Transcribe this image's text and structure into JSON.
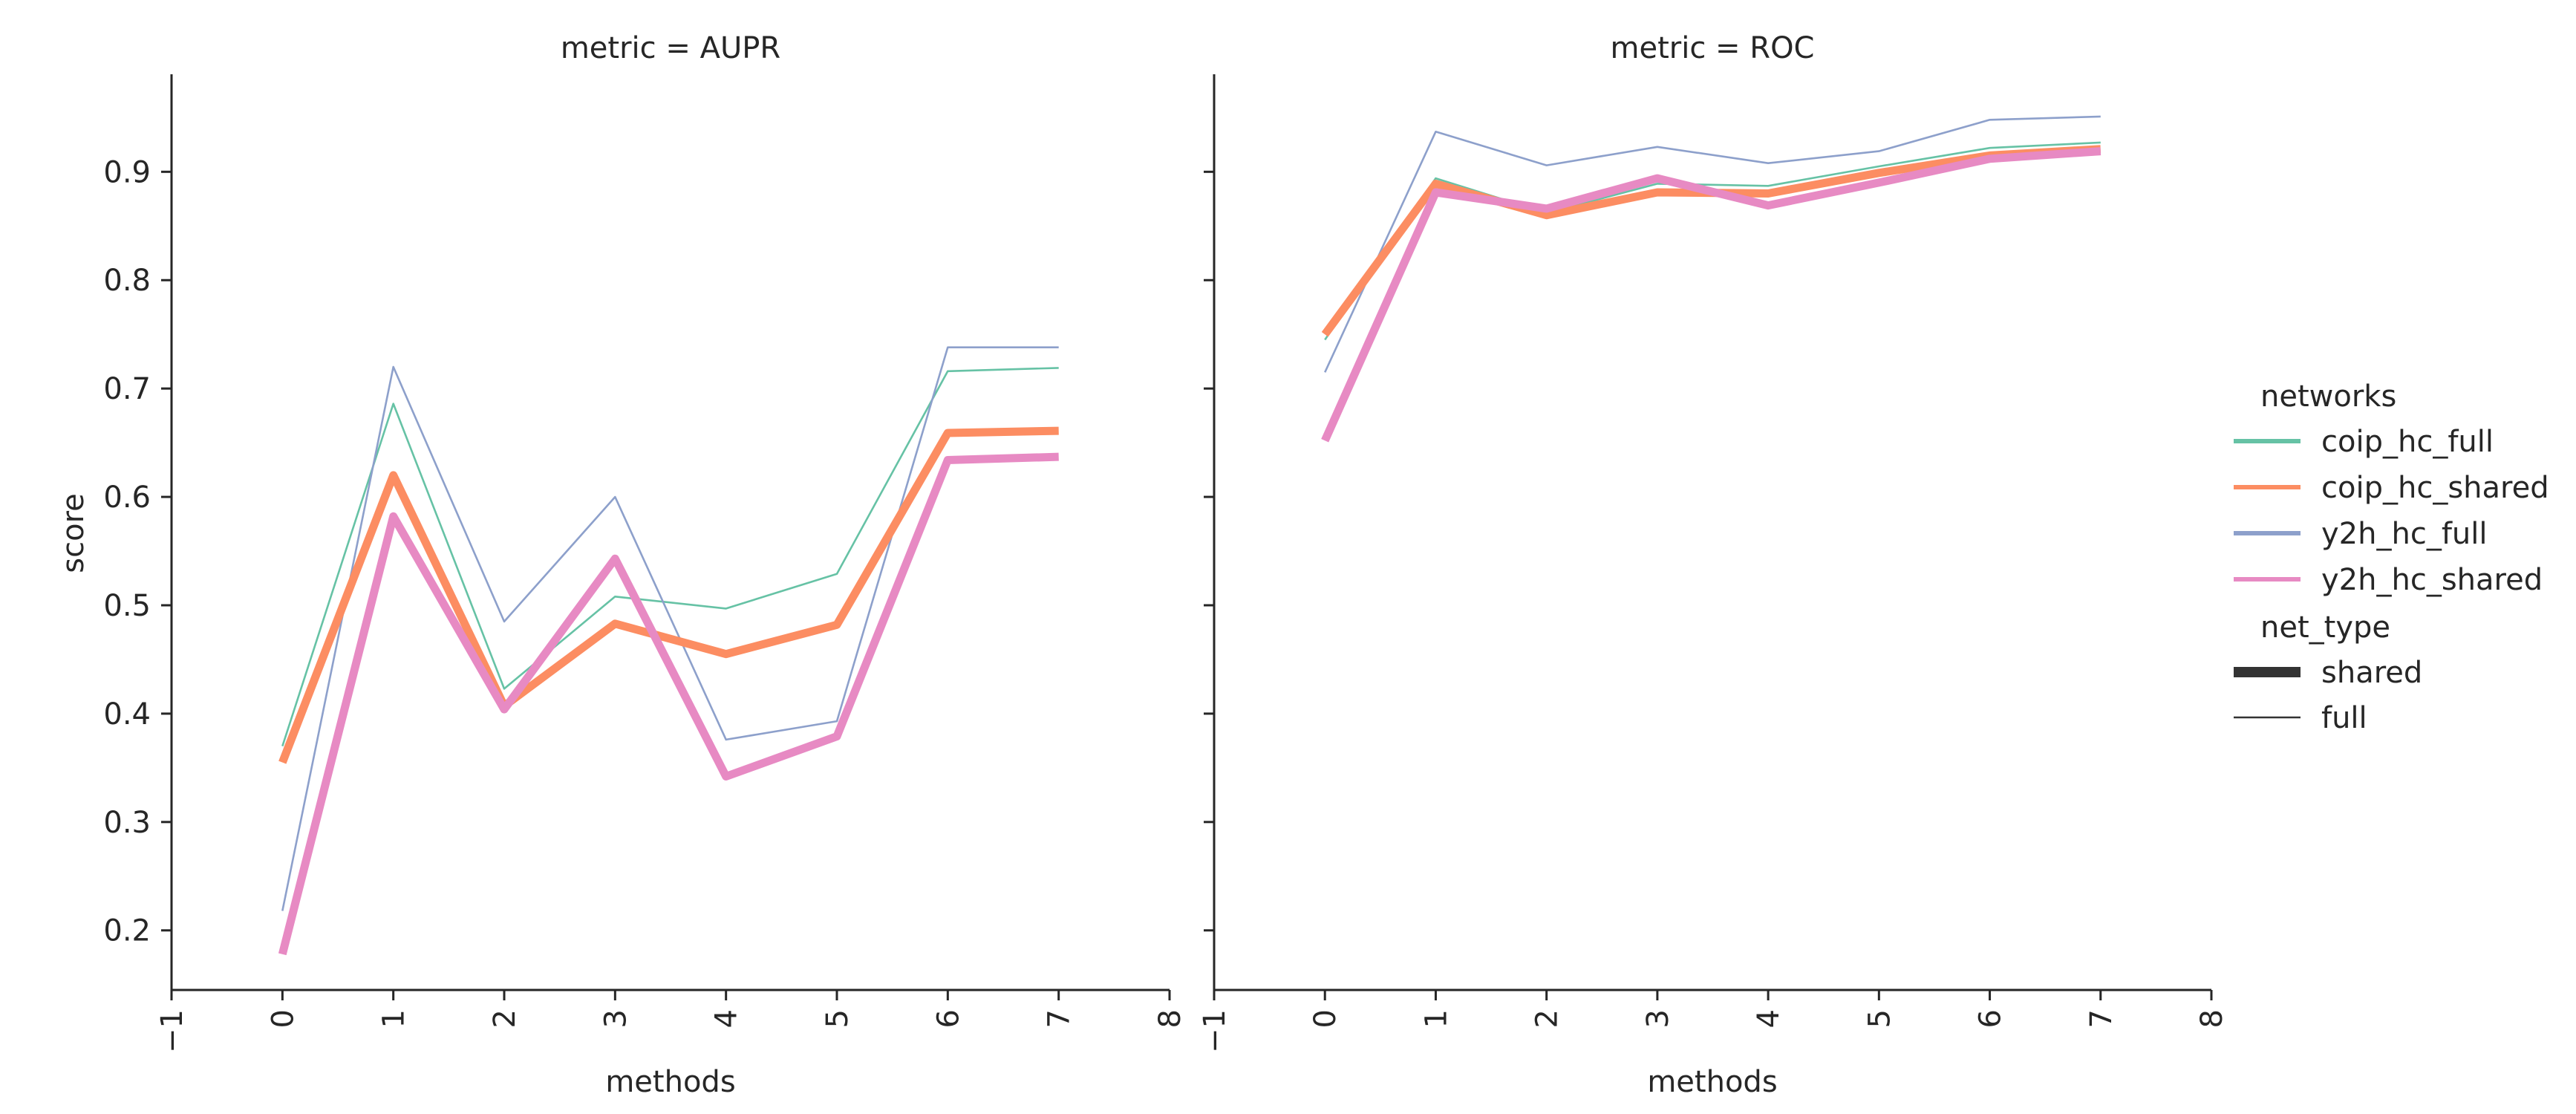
{
  "figure": {
    "y_axis_label": "score",
    "panels": [
      {
        "id": "aupr",
        "title": "metric = AUPR",
        "xlabel": "methods"
      },
      {
        "id": "roc",
        "title": "metric = ROC",
        "xlabel": "methods"
      }
    ],
    "legend": {
      "networks_title": "networks",
      "networks": [
        "coip_hc_full",
        "coip_hc_shared",
        "y2h_hc_full",
        "y2h_hc_shared"
      ],
      "net_type_title": "net_type",
      "net_types": [
        "shared",
        "full"
      ]
    },
    "colors": {
      "coip_hc_full": "#66c2a5",
      "coip_hc_shared": "#fc8d62",
      "y2h_hc_full": "#8da0cb",
      "y2h_hc_shared": "#e78ac3",
      "axis": "#262626"
    }
  },
  "chart_data": [
    {
      "type": "line",
      "title": "metric = AUPR",
      "xlabel": "methods",
      "ylabel": "score",
      "xlim": [
        -1,
        8
      ],
      "ylim": [
        0.145,
        0.99
      ],
      "x_ticks": [
        "−1",
        "0",
        "1",
        "2",
        "3",
        "4",
        "5",
        "6",
        "7",
        "8"
      ],
      "y_ticks": [
        "0.2",
        "0.3",
        "0.4",
        "0.5",
        "0.6",
        "0.7",
        "0.8",
        "0.9"
      ],
      "x": [
        0,
        1,
        2,
        3,
        4,
        5,
        6,
        7
      ],
      "grid": false,
      "legend_position": "right",
      "series": [
        {
          "name": "coip_hc_full",
          "net_type": "full",
          "values": [
            0.37,
            0.686,
            0.423,
            0.508,
            0.497,
            0.529,
            0.716,
            0.719
          ]
        },
        {
          "name": "y2h_hc_full",
          "net_type": "full",
          "values": [
            0.218,
            0.72,
            0.485,
            0.6,
            0.376,
            0.393,
            0.738,
            0.738
          ]
        },
        {
          "name": "coip_hc_shared",
          "net_type": "shared",
          "values": [
            0.355,
            0.62,
            0.407,
            0.483,
            0.455,
            0.482,
            0.659,
            0.661
          ]
        },
        {
          "name": "y2h_hc_shared",
          "net_type": "shared",
          "values": [
            0.178,
            0.582,
            0.404,
            0.543,
            0.342,
            0.379,
            0.634,
            0.637
          ]
        }
      ]
    },
    {
      "type": "line",
      "title": "metric = ROC",
      "xlabel": "methods",
      "ylabel": "score",
      "xlim": [
        -1,
        8
      ],
      "ylim": [
        0.145,
        0.99
      ],
      "x_ticks": [
        "−1",
        "0",
        "1",
        "2",
        "3",
        "4",
        "5",
        "6",
        "7",
        "8"
      ],
      "y_ticks": [
        "0.2",
        "0.3",
        "0.4",
        "0.5",
        "0.6",
        "0.7",
        "0.8",
        "0.9"
      ],
      "x": [
        0,
        1,
        2,
        3,
        4,
        5,
        6,
        7
      ],
      "grid": false,
      "legend_position": "right",
      "series": [
        {
          "name": "coip_hc_full",
          "net_type": "full",
          "values": [
            0.745,
            0.894,
            0.862,
            0.889,
            0.887,
            0.905,
            0.922,
            0.927
          ]
        },
        {
          "name": "y2h_hc_full",
          "net_type": "full",
          "values": [
            0.715,
            0.937,
            0.906,
            0.923,
            0.908,
            0.919,
            0.948,
            0.951
          ]
        },
        {
          "name": "coip_hc_shared",
          "net_type": "shared",
          "values": [
            0.75,
            0.889,
            0.86,
            0.881,
            0.88,
            0.899,
            0.915,
            0.921
          ]
        },
        {
          "name": "y2h_hc_shared",
          "net_type": "shared",
          "values": [
            0.652,
            0.881,
            0.866,
            0.894,
            0.869,
            0.89,
            0.912,
            0.919
          ]
        }
      ]
    }
  ]
}
